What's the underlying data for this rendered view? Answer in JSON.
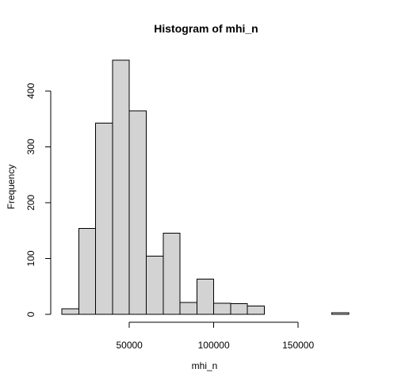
{
  "chart_data": {
    "type": "bar",
    "title": "Histogram of mhi_n",
    "xlabel": "mhi_n",
    "ylabel": "Frequency",
    "xlim": [
      10000,
      180000
    ],
    "ylim": [
      0,
      455
    ],
    "bins": [
      {
        "start": 10000,
        "end": 20000,
        "count": 10
      },
      {
        "start": 20000,
        "end": 30000,
        "count": 154
      },
      {
        "start": 30000,
        "end": 40000,
        "count": 342
      },
      {
        "start": 40000,
        "end": 50000,
        "count": 455
      },
      {
        "start": 50000,
        "end": 60000,
        "count": 364
      },
      {
        "start": 60000,
        "end": 70000,
        "count": 104
      },
      {
        "start": 70000,
        "end": 80000,
        "count": 145
      },
      {
        "start": 80000,
        "end": 90000,
        "count": 21
      },
      {
        "start": 90000,
        "end": 100000,
        "count": 63
      },
      {
        "start": 100000,
        "end": 110000,
        "count": 20
      },
      {
        "start": 110000,
        "end": 120000,
        "count": 19
      },
      {
        "start": 120000,
        "end": 130000,
        "count": 15
      },
      {
        "start": 130000,
        "end": 140000,
        "count": 0
      },
      {
        "start": 140000,
        "end": 150000,
        "count": 0
      },
      {
        "start": 150000,
        "end": 160000,
        "count": 0
      },
      {
        "start": 160000,
        "end": 170000,
        "count": 0
      },
      {
        "start": 170000,
        "end": 180000,
        "count": 3
      }
    ],
    "x_ticks": [
      {
        "value": 50000,
        "label": "50000"
      },
      {
        "value": 100000,
        "label": "100000"
      },
      {
        "value": 150000,
        "label": "150000"
      }
    ],
    "y_ticks": [
      {
        "value": 0,
        "label": "0"
      },
      {
        "value": 100,
        "label": "100"
      },
      {
        "value": 200,
        "label": "200"
      },
      {
        "value": 300,
        "label": "300"
      },
      {
        "value": 400,
        "label": "400"
      }
    ],
    "grid": false,
    "legend": "none",
    "bar_fill": "#d3d3d3",
    "bar_stroke": "#000000"
  }
}
